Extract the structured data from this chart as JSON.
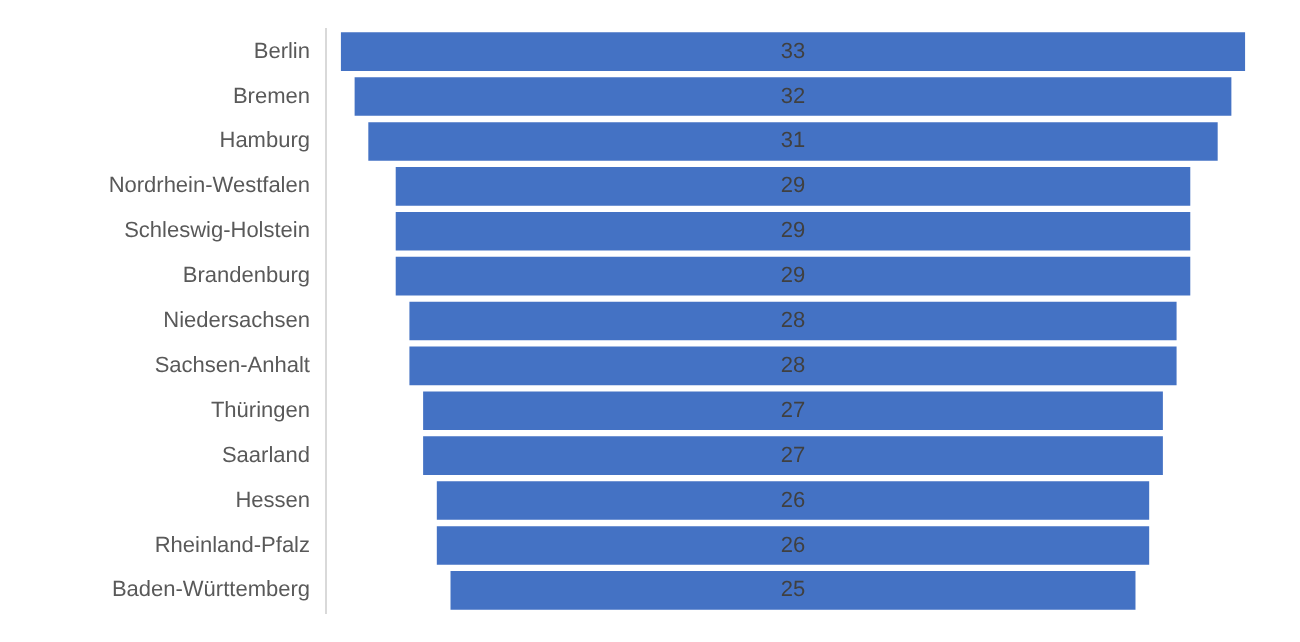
{
  "chart_data": {
    "type": "other",
    "categories": [
      "Berlin",
      "Bremen",
      "Hamburg",
      "Nordrhein-Westfalen",
      "Schleswig-Holstein",
      "Brandenburg",
      "Niedersachsen",
      "Sachsen-Anhalt",
      "Thüringen",
      "Saarland",
      "Hessen",
      "Rheinland-Pfalz",
      "Baden-Württemberg"
    ],
    "values": [
      33,
      32,
      31,
      29,
      29,
      29,
      28,
      28,
      27,
      27,
      26,
      26,
      25
    ],
    "color": "#4472c4",
    "data_labels": true
  }
}
